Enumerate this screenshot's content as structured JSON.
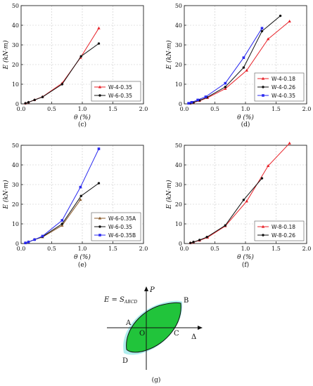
{
  "chart_data": [
    {
      "type": "line",
      "caption": "(c)",
      "xlabel": "θ (%)",
      "ylabel": "E (kN·m)",
      "xlim": [
        0,
        2.0
      ],
      "ylim": [
        0,
        50
      ],
      "xticks": [
        "0.0",
        "0.5",
        "1.0",
        "1.5",
        "2.0"
      ],
      "yticks": [
        "0",
        "10",
        "20",
        "30",
        "40",
        "50"
      ],
      "grid": true,
      "legend_position": "bottom-right",
      "series": [
        {
          "name": "W-4-0.35",
          "color": "#e8232a",
          "marker": "triangle",
          "x": [
            0.07,
            0.12,
            0.22,
            0.35,
            0.67,
            0.97,
            1.27
          ],
          "y": [
            0.3,
            0.8,
            2.0,
            3.6,
            10.5,
            23.5,
            38.5
          ]
        },
        {
          "name": "W-6-0.35",
          "color": "#111111",
          "marker": "circle",
          "x": [
            0.07,
            0.12,
            0.22,
            0.35,
            0.67,
            0.98,
            1.27
          ],
          "y": [
            0.3,
            0.8,
            2.0,
            3.5,
            10.0,
            24.2,
            30.7
          ]
        }
      ]
    },
    {
      "type": "line",
      "caption": "(d)",
      "xlabel": "θ (%)",
      "ylabel": "E (kN·m)",
      "xlim": [
        0,
        2.0
      ],
      "ylim": [
        0,
        50
      ],
      "xticks": [
        "0.0",
        "0.5",
        "1.0",
        "1.5",
        "2.0"
      ],
      "yticks": [
        "0",
        "10",
        "20",
        "30",
        "40",
        "50"
      ],
      "grid": true,
      "legend_position": "bottom-right",
      "series": [
        {
          "name": "W-4-0.18",
          "color": "#e8232a",
          "marker": "triangle",
          "x": [
            0.1,
            0.15,
            0.25,
            0.38,
            0.67,
            1.02,
            1.37,
            1.72
          ],
          "y": [
            0.3,
            0.7,
            1.6,
            3.1,
            7.7,
            17.0,
            33.0,
            42.0
          ]
        },
        {
          "name": "W-4-0.26",
          "color": "#111111",
          "marker": "circle",
          "x": [
            0.1,
            0.15,
            0.25,
            0.37,
            0.67,
            0.97,
            1.27,
            1.57
          ],
          "y": [
            0.3,
            0.8,
            1.8,
            3.3,
            8.6,
            18.5,
            37.0,
            44.8
          ]
        },
        {
          "name": "W-4-0.35",
          "color": "#2a2af0",
          "marker": "square",
          "x": [
            0.07,
            0.12,
            0.22,
            0.35,
            0.67,
            0.97,
            1.27
          ],
          "y": [
            0.3,
            0.8,
            2.0,
            3.6,
            10.5,
            23.5,
            38.5
          ]
        }
      ]
    },
    {
      "type": "line",
      "caption": "(e)",
      "xlabel": "θ (%)",
      "ylabel": "E (kN·m)",
      "xlim": [
        0,
        2.0
      ],
      "ylim": [
        0,
        50
      ],
      "xticks": [
        "0.0",
        "0.5",
        "1.0",
        "1.5",
        "2.0"
      ],
      "yticks": [
        "0",
        "10",
        "20",
        "30",
        "40",
        "50"
      ],
      "grid": true,
      "legend_position": "bottom-right",
      "series": [
        {
          "name": "W-6-0.35A",
          "color": "#8a5a2a",
          "marker": "triangle",
          "x": [
            0.07,
            0.12,
            0.22,
            0.35,
            0.67,
            0.97
          ],
          "y": [
            0.3,
            0.8,
            2.0,
            3.3,
            9.2,
            22.3
          ]
        },
        {
          "name": "W-6-0.35",
          "color": "#111111",
          "marker": "circle",
          "x": [
            0.07,
            0.12,
            0.22,
            0.35,
            0.67,
            0.98,
            1.27
          ],
          "y": [
            0.3,
            0.8,
            2.0,
            3.5,
            10.0,
            24.2,
            30.7
          ]
        },
        {
          "name": "W-6-0.35B",
          "color": "#2a2af0",
          "marker": "square",
          "x": [
            0.07,
            0.12,
            0.22,
            0.35,
            0.67,
            0.97,
            1.27
          ],
          "y": [
            0.3,
            0.8,
            2.0,
            3.8,
            11.8,
            28.7,
            48.2
          ]
        }
      ]
    },
    {
      "type": "line",
      "caption": "(f)",
      "xlabel": "θ (%)",
      "ylabel": "E (kN·m)",
      "xlim": [
        0,
        2.0
      ],
      "ylim": [
        0,
        50
      ],
      "xticks": [
        "0.0",
        "0.5",
        "1.0",
        "1.5",
        "2.0"
      ],
      "yticks": [
        "0",
        "10",
        "20",
        "30",
        "40",
        "50"
      ],
      "grid": true,
      "legend_position": "bottom-right",
      "series": [
        {
          "name": "W-8-0.18",
          "color": "#e8232a",
          "marker": "triangle",
          "x": [
            0.1,
            0.15,
            0.25,
            0.38,
            0.67,
            1.02,
            1.37,
            1.72
          ],
          "y": [
            0.3,
            0.7,
            1.6,
            3.1,
            8.9,
            21.5,
            39.5,
            51.0
          ]
        },
        {
          "name": "W-8-0.26",
          "color": "#111111",
          "marker": "circle",
          "x": [
            0.1,
            0.15,
            0.25,
            0.37,
            0.67,
            0.97,
            1.27
          ],
          "y": [
            0.3,
            0.8,
            1.8,
            3.3,
            9.2,
            22.2,
            33.2
          ]
        }
      ]
    }
  ],
  "diagram": {
    "caption": "(g)",
    "formula": "E = S",
    "formula_sub": "ABCD",
    "y_axis_label": "P",
    "x_axis_label": "Δ",
    "points": [
      "A",
      "B",
      "C",
      "D",
      "O"
    ],
    "fill_color": "#21c43b",
    "halo_color": "#9be8e8"
  }
}
